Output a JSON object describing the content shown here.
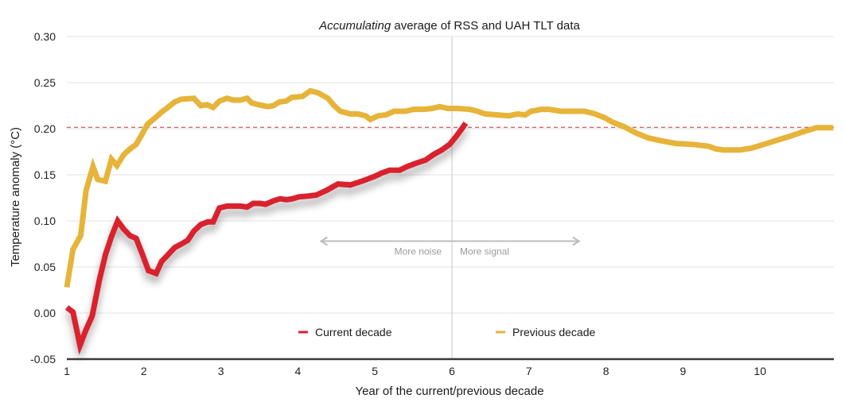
{
  "chart_data": {
    "type": "line",
    "title_emphasis": "Accumulating",
    "title_rest": " average of RSS and UAH TLT data",
    "title": "Accumulating average of RSS and UAH TLT data",
    "xlabel": "Year of the current/previous decade",
    "ylabel": "Temperature anomaly (°C)",
    "xlim": [
      1,
      10.95
    ],
    "ylim": [
      -0.05,
      0.3
    ],
    "x_ticks": [
      1,
      2,
      3,
      4,
      5,
      6,
      7,
      8,
      9,
      10
    ],
    "x_tick_labels": [
      "1",
      "2",
      "3",
      "4",
      "5",
      "6",
      "7",
      "8",
      "9",
      "10"
    ],
    "y_ticks": [
      -0.05,
      0.0,
      0.05,
      0.1,
      0.15,
      0.2,
      0.25,
      0.3
    ],
    "y_tick_labels": [
      "-0.05",
      "0.00",
      "0.05",
      "0.10",
      "0.15",
      "0.20",
      "0.25",
      "0.30"
    ],
    "grid": true,
    "reference_line": {
      "y": 0.2015,
      "style": "dashed",
      "color": "#cc3333"
    },
    "divider_line": {
      "x": 6.0,
      "color": "#c8c8c8"
    },
    "annotations": {
      "arrow_left_from": 6.0,
      "arrow_left_to": 4.3,
      "arrow_right_from": 6.0,
      "arrow_right_to": 7.65,
      "arrow_y": 0.078,
      "left_text": "More noise",
      "right_text": "More signal"
    },
    "legend": {
      "placement": "bottom-center",
      "entries": [
        {
          "name": "Current decade",
          "color": "#d9222f"
        },
        {
          "name": "Previous decade",
          "color": "#e6b43a"
        }
      ]
    },
    "series": [
      {
        "name": "Previous decade",
        "color": "#e6b43a",
        "points": [
          [
            1.0,
            0.028
          ],
          [
            1.08,
            0.069
          ],
          [
            1.18,
            0.084
          ],
          [
            1.25,
            0.133
          ],
          [
            1.34,
            0.159
          ],
          [
            1.4,
            0.145
          ],
          [
            1.5,
            0.143
          ],
          [
            1.58,
            0.167
          ],
          [
            1.65,
            0.16
          ],
          [
            1.74,
            0.172
          ],
          [
            1.82,
            0.178
          ],
          [
            1.9,
            0.183
          ],
          [
            1.97,
            0.193
          ],
          [
            2.05,
            0.205
          ],
          [
            2.15,
            0.212
          ],
          [
            2.23,
            0.218
          ],
          [
            2.31,
            0.223
          ],
          [
            2.4,
            0.229
          ],
          [
            2.48,
            0.232
          ],
          [
            2.65,
            0.233
          ],
          [
            2.74,
            0.225
          ],
          [
            2.82,
            0.226
          ],
          [
            2.9,
            0.223
          ],
          [
            2.98,
            0.23
          ],
          [
            3.08,
            0.233
          ],
          [
            3.16,
            0.231
          ],
          [
            3.25,
            0.231
          ],
          [
            3.34,
            0.233
          ],
          [
            3.4,
            0.228
          ],
          [
            3.49,
            0.226
          ],
          [
            3.61,
            0.224
          ],
          [
            3.68,
            0.225
          ],
          [
            3.76,
            0.229
          ],
          [
            3.85,
            0.23
          ],
          [
            3.92,
            0.234
          ],
          [
            4.06,
            0.235
          ],
          [
            4.16,
            0.241
          ],
          [
            4.26,
            0.239
          ],
          [
            4.39,
            0.233
          ],
          [
            4.47,
            0.225
          ],
          [
            4.55,
            0.219
          ],
          [
            4.68,
            0.216
          ],
          [
            4.78,
            0.216
          ],
          [
            4.88,
            0.214
          ],
          [
            4.94,
            0.21
          ],
          [
            5.04,
            0.214
          ],
          [
            5.14,
            0.215
          ],
          [
            5.25,
            0.219
          ],
          [
            5.4,
            0.219
          ],
          [
            5.5,
            0.221
          ],
          [
            5.64,
            0.221
          ],
          [
            5.74,
            0.222
          ],
          [
            5.84,
            0.224
          ],
          [
            5.95,
            0.222
          ],
          [
            6.07,
            0.222
          ],
          [
            6.23,
            0.221
          ],
          [
            6.33,
            0.219
          ],
          [
            6.43,
            0.216
          ],
          [
            6.59,
            0.215
          ],
          [
            6.74,
            0.214
          ],
          [
            6.85,
            0.216
          ],
          [
            6.95,
            0.215
          ],
          [
            7.03,
            0.219
          ],
          [
            7.16,
            0.221
          ],
          [
            7.26,
            0.221
          ],
          [
            7.41,
            0.219
          ],
          [
            7.57,
            0.219
          ],
          [
            7.72,
            0.219
          ],
          [
            7.86,
            0.216
          ],
          [
            7.98,
            0.212
          ],
          [
            8.09,
            0.207
          ],
          [
            8.24,
            0.202
          ],
          [
            8.4,
            0.195
          ],
          [
            8.55,
            0.19
          ],
          [
            8.71,
            0.187
          ],
          [
            8.91,
            0.184
          ],
          [
            9.12,
            0.183
          ],
          [
            9.33,
            0.181
          ],
          [
            9.43,
            0.178
          ],
          [
            9.53,
            0.177
          ],
          [
            9.74,
            0.177
          ],
          [
            9.89,
            0.179
          ],
          [
            10.05,
            0.183
          ],
          [
            10.2,
            0.187
          ],
          [
            10.36,
            0.191
          ],
          [
            10.57,
            0.197
          ],
          [
            10.73,
            0.201
          ],
          [
            10.95,
            0.201
          ]
        ]
      },
      {
        "name": "Current decade",
        "color": "#d9222f",
        "points": [
          [
            1.0,
            0.006
          ],
          [
            1.08,
            0.001
          ],
          [
            1.17,
            -0.035
          ],
          [
            1.25,
            -0.018
          ],
          [
            1.33,
            -0.003
          ],
          [
            1.42,
            0.035
          ],
          [
            1.5,
            0.063
          ],
          [
            1.58,
            0.083
          ],
          [
            1.66,
            0.1
          ],
          [
            1.74,
            0.091
          ],
          [
            1.82,
            0.084
          ],
          [
            1.9,
            0.081
          ],
          [
            1.98,
            0.064
          ],
          [
            2.06,
            0.046
          ],
          [
            2.16,
            0.043
          ],
          [
            2.23,
            0.056
          ],
          [
            2.3,
            0.062
          ],
          [
            2.4,
            0.071
          ],
          [
            2.49,
            0.075
          ],
          [
            2.57,
            0.079
          ],
          [
            2.65,
            0.089
          ],
          [
            2.74,
            0.096
          ],
          [
            2.83,
            0.099
          ],
          [
            2.9,
            0.099
          ],
          [
            2.98,
            0.114
          ],
          [
            3.08,
            0.116
          ],
          [
            3.16,
            0.116
          ],
          [
            3.25,
            0.116
          ],
          [
            3.34,
            0.115
          ],
          [
            3.42,
            0.119
          ],
          [
            3.51,
            0.119
          ],
          [
            3.58,
            0.118
          ],
          [
            3.69,
            0.122
          ],
          [
            3.77,
            0.124
          ],
          [
            3.85,
            0.123
          ],
          [
            3.93,
            0.124
          ],
          [
            4.01,
            0.126
          ],
          [
            4.14,
            0.127
          ],
          [
            4.24,
            0.128
          ],
          [
            4.37,
            0.133
          ],
          [
            4.52,
            0.14
          ],
          [
            4.68,
            0.139
          ],
          [
            4.83,
            0.143
          ],
          [
            4.99,
            0.148
          ],
          [
            5.09,
            0.152
          ],
          [
            5.19,
            0.155
          ],
          [
            5.32,
            0.155
          ],
          [
            5.42,
            0.159
          ],
          [
            5.55,
            0.163
          ],
          [
            5.66,
            0.166
          ],
          [
            5.76,
            0.172
          ],
          [
            5.87,
            0.177
          ],
          [
            5.97,
            0.183
          ],
          [
            6.05,
            0.191
          ],
          [
            6.12,
            0.199
          ],
          [
            6.18,
            0.206
          ]
        ]
      }
    ]
  }
}
